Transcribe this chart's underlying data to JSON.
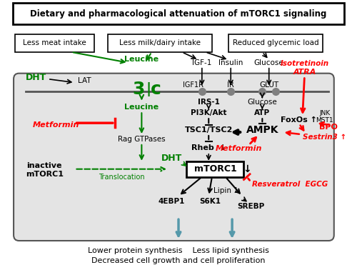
{
  "title": "Dietary and pharmacological attenuation of mTORC1 signaling",
  "bottom_text_1": "Lower protein synthesis    Less lipid synthesis",
  "bottom_text_2": "Decreased cell growth and cell proliferation"
}
